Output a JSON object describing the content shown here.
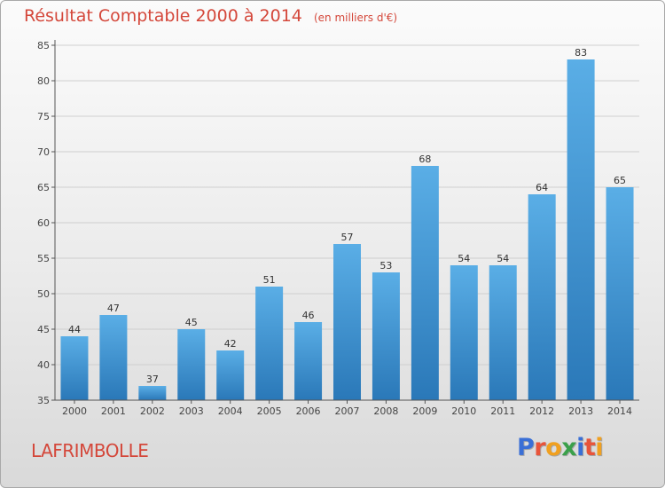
{
  "header": {
    "title": "Résultat Comptable 2000 à 2014",
    "unit": "(en milliers d'€)"
  },
  "footer": {
    "commune": "LAFRIMBOLLE",
    "brand": "Proxiti",
    "brand_colors": [
      "#3a6fd6",
      "#e8543a",
      "#f0a020",
      "#3aa04a",
      "#3a6fd6",
      "#e8543a",
      "#f0a020"
    ]
  },
  "colors": {
    "title": "#d4473a",
    "bar_top": "#5aaee6",
    "bar_bottom": "#2a78b8",
    "axis": "#555555",
    "grid": "#cfcfcf"
  },
  "chart_data": {
    "type": "bar",
    "title": "Résultat Comptable 2000 à 2014",
    "subtitle": "(en milliers d'€)",
    "categories": [
      "2000",
      "2001",
      "2002",
      "2003",
      "2004",
      "2005",
      "2006",
      "2007",
      "2008",
      "2009",
      "2010",
      "2011",
      "2012",
      "2013",
      "2014"
    ],
    "values": [
      44,
      47,
      37,
      45,
      42,
      51,
      46,
      57,
      53,
      68,
      54,
      54,
      64,
      83,
      65
    ],
    "ylim": [
      35,
      85
    ],
    "yticks": [
      35,
      40,
      45,
      50,
      55,
      60,
      65,
      70,
      75,
      80,
      85
    ],
    "grid": true,
    "data_labels": true
  }
}
